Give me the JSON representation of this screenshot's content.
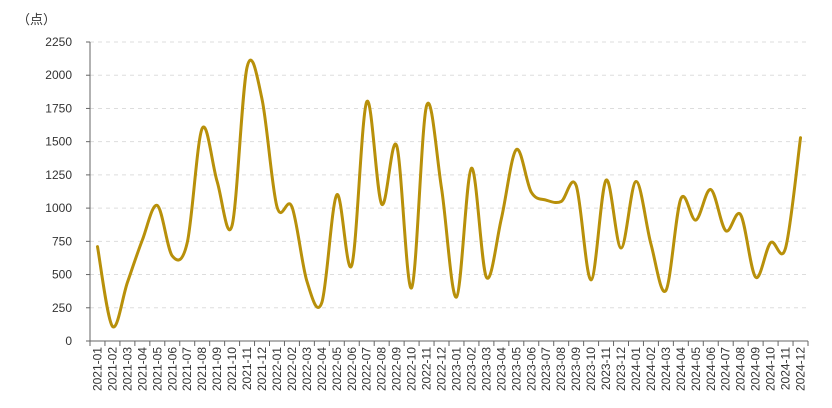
{
  "chart_data": {
    "type": "line",
    "unit_label": "（点）",
    "ylim": [
      0,
      2250
    ],
    "yticks": [
      0,
      250,
      500,
      750,
      1000,
      1250,
      1500,
      1750,
      2000,
      2250
    ],
    "grid": true,
    "legend": "none",
    "line_color": "#B8900A",
    "categories": [
      "2021-01",
      "2021-02",
      "2021-03",
      "2021-04",
      "2021-05",
      "2021-06",
      "2021-07",
      "2021-08",
      "2021-09",
      "2021-10",
      "2021-11",
      "2021-12",
      "2022-01",
      "2022-02",
      "2022-03",
      "2022-04",
      "2022-05",
      "2022-06",
      "2022-07",
      "2022-08",
      "2022-09",
      "2022-10",
      "2022-11",
      "2022-12",
      "2023-01",
      "2023-02",
      "2023-03",
      "2023-04",
      "2023-05",
      "2023-06",
      "2023-07",
      "2023-08",
      "2023-09",
      "2023-10",
      "2023-11",
      "2023-12",
      "2024-01",
      "2024-02",
      "2024-03",
      "2024-04",
      "2024-05",
      "2024-06",
      "2024-07",
      "2024-08",
      "2024-09",
      "2024-10",
      "2024-11",
      "2024-12"
    ],
    "series": [
      {
        "values": [
          710,
          110,
          440,
          760,
          1020,
          640,
          740,
          1600,
          1200,
          870,
          2060,
          1820,
          1010,
          1010,
          450,
          290,
          1100,
          570,
          1800,
          1030,
          1470,
          400,
          1770,
          1150,
          330,
          1300,
          480,
          920,
          1440,
          1120,
          1060,
          1050,
          1170,
          460,
          1210,
          700,
          1200,
          730,
          380,
          1070,
          910,
          1140,
          830,
          950,
          480,
          740,
          700,
          1530
        ]
      }
    ]
  }
}
